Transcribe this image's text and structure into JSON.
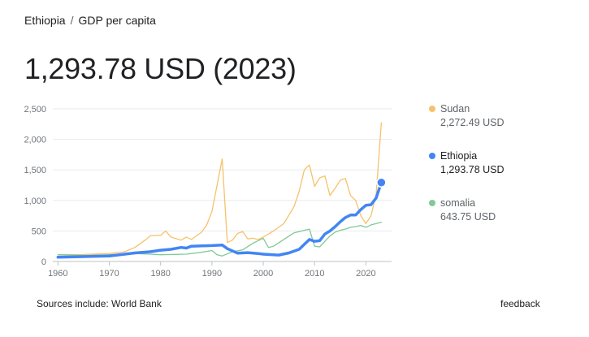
{
  "breadcrumb": {
    "country": "Ethiopia",
    "separator": "/",
    "metric": "GDP per capita"
  },
  "headline": "1,293.78 USD (2023)",
  "legend": [
    {
      "name": "Sudan",
      "value": "2,272.49 USD",
      "color": "#f6c26b"
    },
    {
      "name": "Ethiopia",
      "value": "1,293.78 USD",
      "color": "#4285f4"
    },
    {
      "name": "somalia",
      "value": "643.75 USD",
      "color": "#81c995"
    }
  ],
  "footer": {
    "sources": "Sources include:  World Bank",
    "feedback": "feedback"
  },
  "chart_data": {
    "type": "line",
    "x_ticks": [
      "1960",
      "1970",
      "1980",
      "1990",
      "2000",
      "2010",
      "2020"
    ],
    "y_ticks": [
      "0",
      "500",
      "1,000",
      "1,500",
      "2,000",
      "2,500"
    ],
    "xlim": [
      1959,
      2025
    ],
    "ylim": [
      0,
      2500
    ],
    "grid": true,
    "legend_position": "right",
    "series": [
      {
        "name": "Sudan",
        "color": "#f6c26b",
        "points": [
          [
            1960,
            110
          ],
          [
            1965,
            115
          ],
          [
            1970,
            130
          ],
          [
            1973,
            160
          ],
          [
            1975,
            230
          ],
          [
            1977,
            350
          ],
          [
            1978,
            420
          ],
          [
            1980,
            430
          ],
          [
            1981,
            500
          ],
          [
            1982,
            400
          ],
          [
            1984,
            350
          ],
          [
            1985,
            400
          ],
          [
            1986,
            360
          ],
          [
            1988,
            480
          ],
          [
            1989,
            600
          ],
          [
            1990,
            820
          ],
          [
            1991,
            1250
          ],
          [
            1992,
            1680
          ],
          [
            1993,
            310
          ],
          [
            1994,
            350
          ],
          [
            1995,
            460
          ],
          [
            1996,
            490
          ],
          [
            1997,
            370
          ],
          [
            1998,
            380
          ],
          [
            1999,
            360
          ],
          [
            2000,
            400
          ],
          [
            2002,
            500
          ],
          [
            2004,
            620
          ],
          [
            2006,
            900
          ],
          [
            2007,
            1150
          ],
          [
            2008,
            1500
          ],
          [
            2009,
            1580
          ],
          [
            2010,
            1230
          ],
          [
            2011,
            1370
          ],
          [
            2012,
            1400
          ],
          [
            2013,
            1080
          ],
          [
            2014,
            1200
          ],
          [
            2015,
            1330
          ],
          [
            2016,
            1360
          ],
          [
            2017,
            1080
          ],
          [
            2018,
            1000
          ],
          [
            2019,
            750
          ],
          [
            2020,
            620
          ],
          [
            2021,
            750
          ],
          [
            2022,
            1100
          ],
          [
            2023,
            2272.49
          ]
        ]
      },
      {
        "name": "Ethiopia",
        "color": "#4285f4",
        "points": [
          [
            1960,
            70
          ],
          [
            1965,
            80
          ],
          [
            1970,
            90
          ],
          [
            1975,
            140
          ],
          [
            1978,
            160
          ],
          [
            1980,
            185
          ],
          [
            1982,
            200
          ],
          [
            1984,
            230
          ],
          [
            1985,
            220
          ],
          [
            1986,
            250
          ],
          [
            1988,
            255
          ],
          [
            1990,
            260
          ],
          [
            1992,
            270
          ],
          [
            1993,
            210
          ],
          [
            1995,
            135
          ],
          [
            1997,
            145
          ],
          [
            1999,
            130
          ],
          [
            2000,
            120
          ],
          [
            2003,
            105
          ],
          [
            2005,
            140
          ],
          [
            2007,
            200
          ],
          [
            2008,
            280
          ],
          [
            2009,
            360
          ],
          [
            2010,
            330
          ],
          [
            2011,
            340
          ],
          [
            2012,
            450
          ],
          [
            2013,
            500
          ],
          [
            2014,
            570
          ],
          [
            2015,
            650
          ],
          [
            2016,
            720
          ],
          [
            2017,
            760
          ],
          [
            2018,
            760
          ],
          [
            2019,
            850
          ],
          [
            2020,
            920
          ],
          [
            2021,
            930
          ],
          [
            2022,
            1040
          ],
          [
            2023,
            1293.78
          ]
        ]
      },
      {
        "name": "somalia",
        "color": "#81c995",
        "points": [
          [
            1960,
            110
          ],
          [
            1965,
            100
          ],
          [
            1970,
            110
          ],
          [
            1975,
            130
          ],
          [
            1978,
            120
          ],
          [
            1980,
            110
          ],
          [
            1985,
            120
          ],
          [
            1988,
            150
          ],
          [
            1990,
            180
          ],
          [
            1991,
            110
          ],
          [
            1992,
            90
          ],
          [
            1994,
            160
          ],
          [
            1996,
            190
          ],
          [
            1998,
            300
          ],
          [
            2000,
            380
          ],
          [
            2001,
            230
          ],
          [
            2002,
            250
          ],
          [
            2004,
            360
          ],
          [
            2006,
            470
          ],
          [
            2008,
            510
          ],
          [
            2009,
            530
          ],
          [
            2010,
            250
          ],
          [
            2011,
            240
          ],
          [
            2012,
            330
          ],
          [
            2013,
            420
          ],
          [
            2014,
            480
          ],
          [
            2015,
            510
          ],
          [
            2016,
            530
          ],
          [
            2017,
            560
          ],
          [
            2018,
            570
          ],
          [
            2019,
            590
          ],
          [
            2020,
            560
          ],
          [
            2021,
            600
          ],
          [
            2022,
            620
          ],
          [
            2023,
            643.75
          ]
        ]
      }
    ],
    "highlighted_series": "Ethiopia",
    "highlighted_point": [
      2023,
      1293.78
    ]
  }
}
